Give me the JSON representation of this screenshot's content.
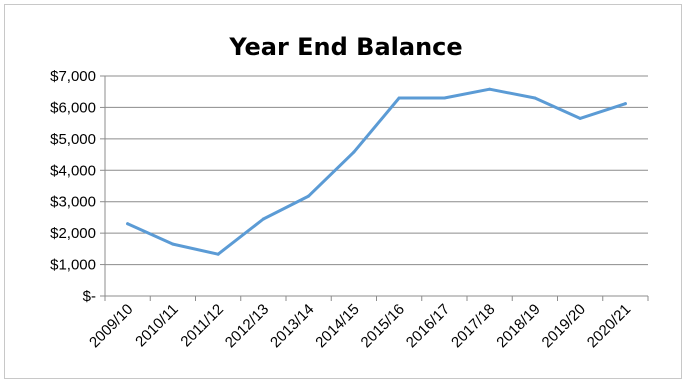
{
  "chart_data": {
    "type": "line",
    "title": "Year End Balance",
    "xlabel": "",
    "ylabel": "",
    "categories": [
      "2009/10",
      "2010/11",
      "2011/12",
      "2012/13",
      "2013/14",
      "2014/15",
      "2015/16",
      "2016/17",
      "2017/18",
      "2018/19",
      "2019/20",
      "2020/21"
    ],
    "series": [
      {
        "values": [
          2300,
          1650,
          1330,
          2450,
          3180,
          4580,
          6300,
          6300,
          6580,
          6300,
          5650,
          6120
        ]
      }
    ],
    "ylim": [
      0,
      7000
    ],
    "yticks": [
      0,
      1000,
      2000,
      3000,
      4000,
      5000,
      6000,
      7000
    ],
    "ytick_labels": [
      "$-",
      "$1,000",
      "$2,000",
      "$3,000",
      "$4,000",
      "$5,000",
      "$6,000",
      "$7,000"
    ],
    "grid": true,
    "legend": "none",
    "line_color": "#5b9bd5",
    "grid_color": "#8c8c8c"
  }
}
